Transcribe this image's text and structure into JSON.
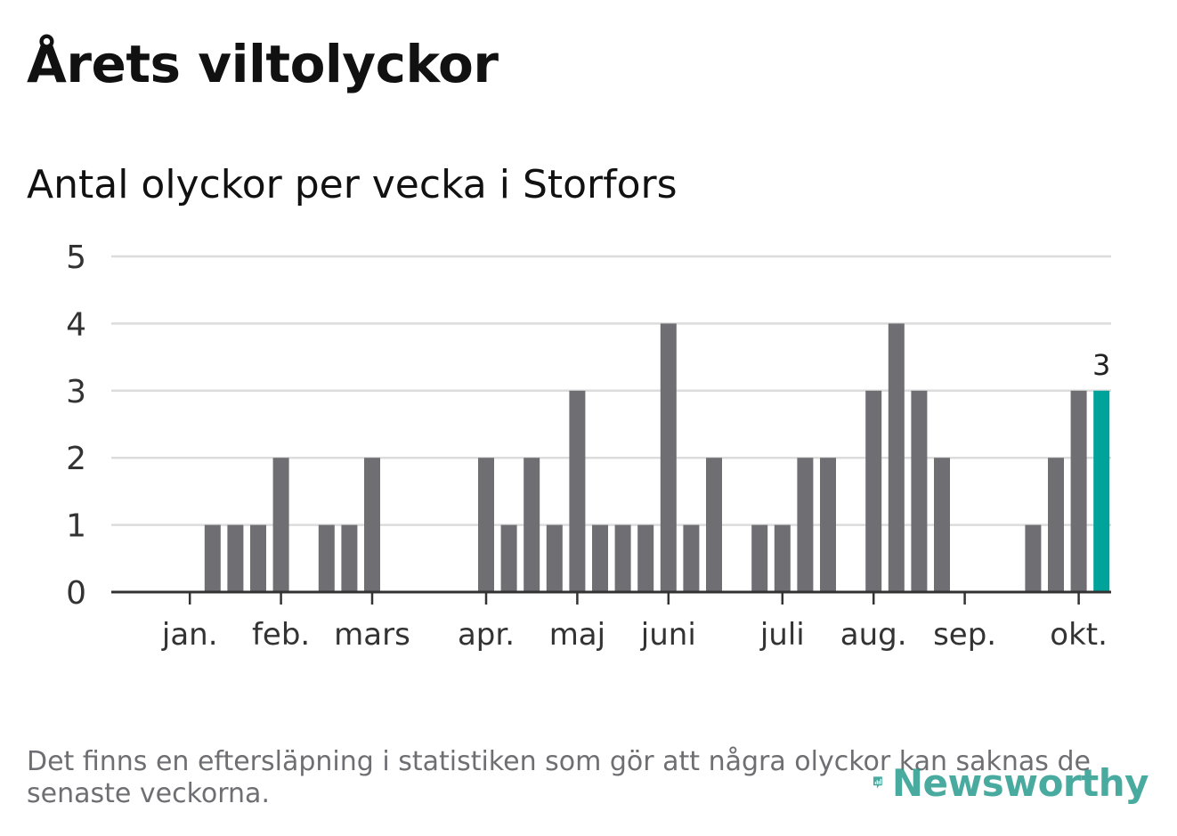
{
  "header": {
    "title": "Årets viltolyckor",
    "subtitle": "Antal olyckor per vecka i Storfors"
  },
  "footnote": "Det finns en eftersläpning i statistiken som gör att några olyckor kan saknas de senaste veckorna.",
  "brand": {
    "name": "Newsworthy"
  },
  "colors": {
    "bar": "#6e6e73",
    "highlight": "#00a39a",
    "grid": "#dcdcdc",
    "axis": "#333333",
    "brand": "#2a9d8f"
  },
  "chart_data": {
    "type": "bar",
    "title": "Antal olyckor per vecka i Storfors",
    "xlabel": "",
    "ylabel": "",
    "ylim": [
      0,
      5
    ],
    "yticks": [
      0,
      1,
      2,
      3,
      4,
      5
    ],
    "weeks": [
      1,
      2,
      3,
      4,
      5,
      6,
      7,
      8,
      9,
      10,
      11,
      12,
      13,
      14,
      15,
      16,
      17,
      18,
      19,
      20,
      21,
      22,
      23,
      24,
      25,
      26,
      27,
      28,
      29,
      30,
      31,
      32,
      33,
      34,
      35,
      36,
      37,
      38,
      39,
      40,
      41,
      42,
      43
    ],
    "values": [
      0,
      0,
      0,
      1,
      1,
      1,
      2,
      0,
      1,
      1,
      2,
      0,
      0,
      0,
      0,
      2,
      1,
      2,
      1,
      3,
      1,
      1,
      1,
      4,
      1,
      2,
      0,
      1,
      1,
      2,
      2,
      0,
      3,
      4,
      3,
      2,
      0,
      0,
      0,
      1,
      2,
      3,
      3
    ],
    "highlight_index": 42,
    "highlight_label": "3",
    "month_labels": [
      {
        "label": "jan.",
        "week": 3
      },
      {
        "label": "feb.",
        "week": 7
      },
      {
        "label": "mars",
        "week": 11
      },
      {
        "label": "apr.",
        "week": 16
      },
      {
        "label": "maj",
        "week": 20
      },
      {
        "label": "juni",
        "week": 24
      },
      {
        "label": "juli",
        "week": 29
      },
      {
        "label": "aug.",
        "week": 33
      },
      {
        "label": "sep.",
        "week": 37
      },
      {
        "label": "okt.",
        "week": 42
      }
    ]
  }
}
